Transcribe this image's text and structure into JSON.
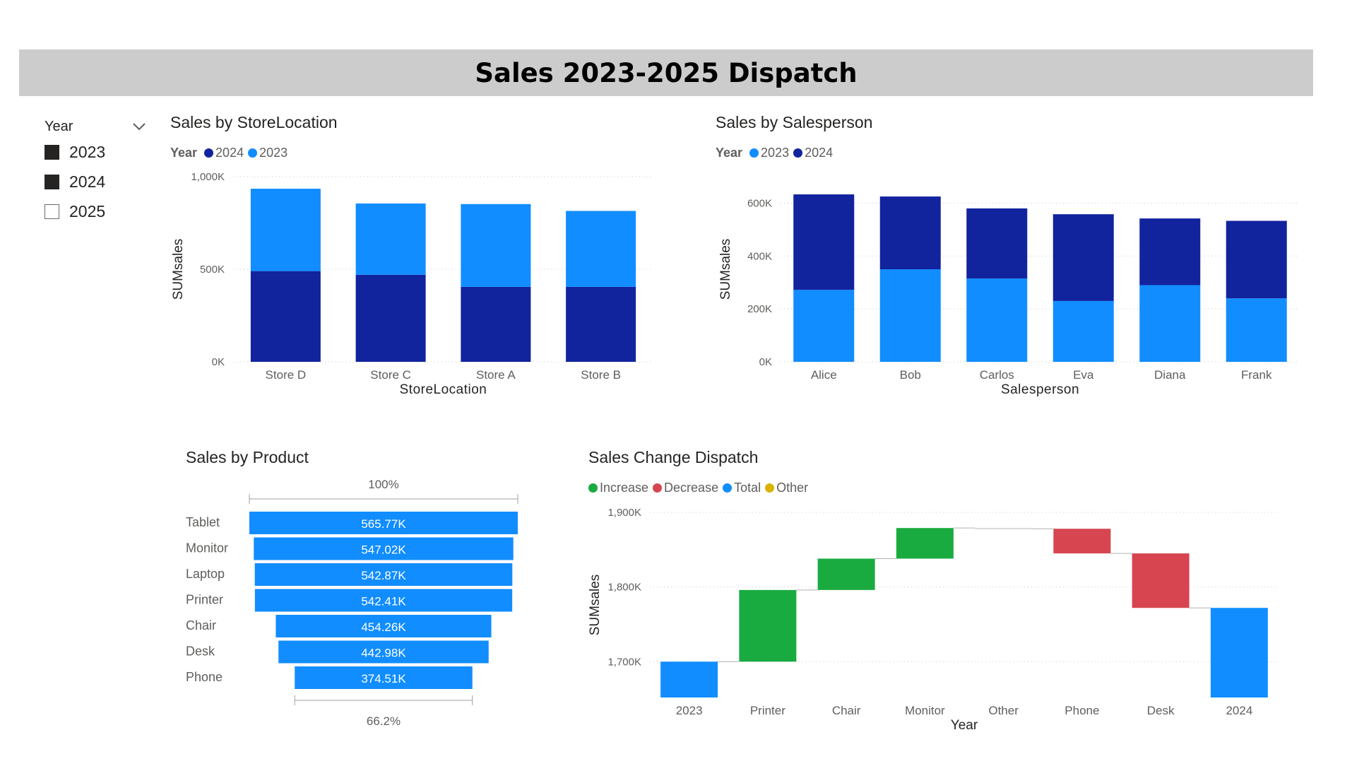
{
  "page": {
    "title": "Sales 2023-2025 Dispatch"
  },
  "slicer": {
    "title": "Year",
    "items": [
      {
        "label": "2023",
        "checked": true
      },
      {
        "label": "2024",
        "checked": true
      },
      {
        "label": "2025",
        "checked": false
      }
    ]
  },
  "colors": {
    "y2023": "#118dff",
    "y2024": "#12239e",
    "increase": "#1aab40",
    "decrease": "#d64550",
    "total": "#118dff",
    "other": "#d9b300"
  },
  "chart_data": [
    {
      "type": "bar",
      "stacked": true,
      "title": "Sales by StoreLocation",
      "legend_title": "Year",
      "legend": [
        "2024",
        "2023"
      ],
      "xlabel": "StoreLocation",
      "ylabel": "SUMsales",
      "ylim": [
        0,
        1000000
      ],
      "yticks": [
        0,
        500000,
        1000000
      ],
      "ytick_labels": [
        "0K",
        "500K",
        "1,000K"
      ],
      "categories": [
        "Store D",
        "Store C",
        "Store A",
        "Store B"
      ],
      "series": [
        {
          "name": "2024",
          "values": [
            490000,
            470000,
            405000,
            405000
          ]
        },
        {
          "name": "2023",
          "values": [
            445000,
            385000,
            447000,
            410000
          ]
        }
      ]
    },
    {
      "type": "bar",
      "stacked": true,
      "title": "Sales by Salesperson",
      "legend_title": "Year",
      "legend": [
        "2023",
        "2024"
      ],
      "xlabel": "Salesperson",
      "ylabel": "SUMsales",
      "ylim": [
        0,
        700000
      ],
      "yticks": [
        0,
        200000,
        400000,
        600000
      ],
      "ytick_labels": [
        "0K",
        "200K",
        "400K",
        "600K"
      ],
      "categories": [
        "Alice",
        "Bob",
        "Carlos",
        "Eva",
        "Diana",
        "Frank"
      ],
      "series": [
        {
          "name": "2023",
          "values": [
            272000,
            350000,
            315000,
            230000,
            290000,
            240000
          ]
        },
        {
          "name": "2024",
          "values": [
            361000,
            275000,
            265000,
            328000,
            252000,
            293000
          ]
        }
      ]
    },
    {
      "type": "funnel",
      "title": "Sales by Product",
      "top_label": "100%",
      "bottom_label": "66.2%",
      "categories": [
        "Tablet",
        "Monitor",
        "Laptop",
        "Printer",
        "Chair",
        "Desk",
        "Phone"
      ],
      "values": [
        565770,
        547020,
        542870,
        542410,
        454260,
        442980,
        374510
      ],
      "value_labels": [
        "565.77K",
        "547.02K",
        "542.87K",
        "542.41K",
        "454.26K",
        "442.98K",
        "374.51K"
      ]
    },
    {
      "type": "waterfall",
      "title": "Sales Change Dispatch",
      "legend": [
        {
          "name": "Increase",
          "key": "increase"
        },
        {
          "name": "Decrease",
          "key": "decrease"
        },
        {
          "name": "Total",
          "key": "total"
        },
        {
          "name": "Other",
          "key": "other"
        }
      ],
      "xlabel": "Year",
      "ylabel": "SUMsales",
      "ylim": [
        1652000,
        1900000
      ],
      "yticks": [
        1700000,
        1800000,
        1900000
      ],
      "ytick_labels": [
        "1,700K",
        "1,800K",
        "1,900K"
      ],
      "steps": [
        {
          "label": "2023",
          "kind": "total",
          "from": 1652000,
          "to": 1700000
        },
        {
          "label": "Printer",
          "kind": "increase",
          "from": 1700000,
          "to": 1796000
        },
        {
          "label": "Chair",
          "kind": "increase",
          "from": 1796000,
          "to": 1838000
        },
        {
          "label": "Monitor",
          "kind": "increase",
          "from": 1838000,
          "to": 1879000
        },
        {
          "label": "Other",
          "kind": "other",
          "from": 1879000,
          "to": 1878000
        },
        {
          "label": "Phone",
          "kind": "decrease",
          "from": 1878000,
          "to": 1845000
        },
        {
          "label": "Desk",
          "kind": "decrease",
          "from": 1845000,
          "to": 1772000
        },
        {
          "label": "2024",
          "kind": "total",
          "from": 1652000,
          "to": 1772000
        }
      ]
    }
  ]
}
